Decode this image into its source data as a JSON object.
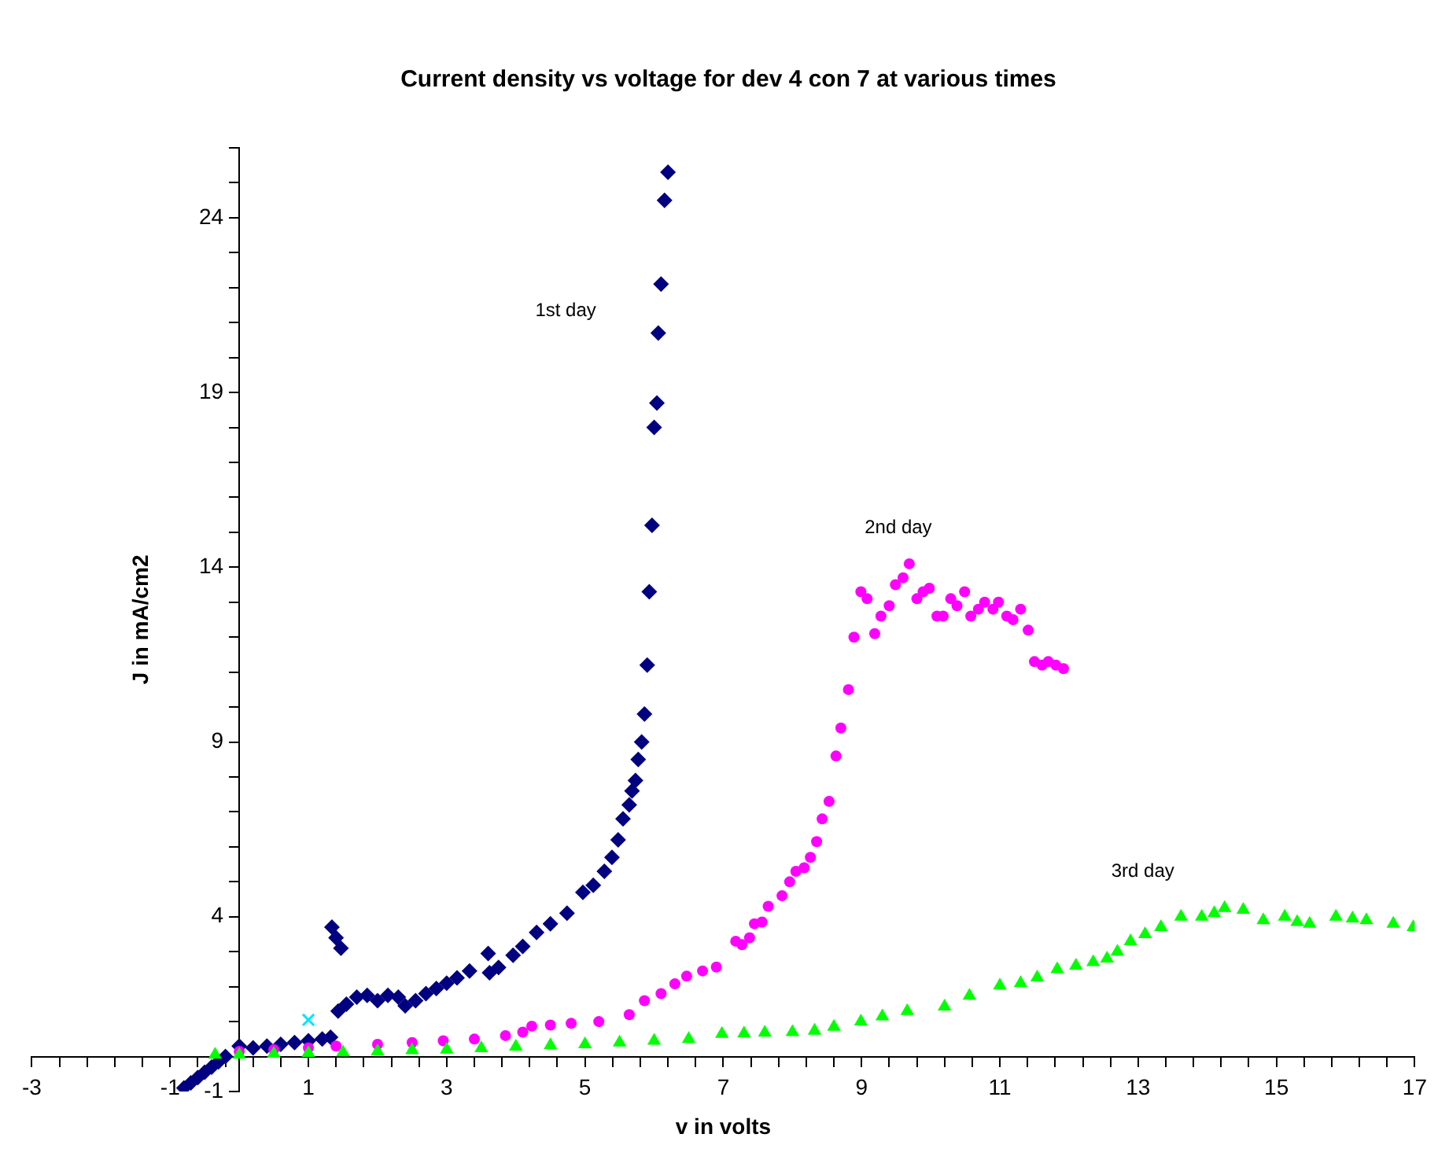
{
  "chart_data": {
    "type": "scatter",
    "title": "Current density vs voltage for dev 4 con 7 at various times",
    "xlabel": "v in volts",
    "ylabel": "J in mA/cm2",
    "xlim": [
      -3,
      17
    ],
    "ylim": [
      -1,
      26
    ],
    "xticks": [
      -3,
      {
        "value": -2.6,
        "label": null
      },
      {
        "value": -2.2,
        "label": null
      },
      {
        "value": -1.8,
        "label": null
      },
      {
        "value": -1.4,
        "label": null
      },
      -1,
      {
        "value": -0.6,
        "label": null
      },
      {
        "value": -0.2,
        "label": null
      },
      {
        "value": 0.2,
        "label": null
      },
      {
        "value": 0.6,
        "label": null
      },
      1,
      {
        "value": 1.4,
        "label": null
      },
      {
        "value": 1.8,
        "label": null
      },
      {
        "value": 2.2,
        "label": null
      },
      {
        "value": 2.6,
        "label": null
      },
      3,
      {
        "value": 3.4,
        "label": null
      },
      {
        "value": 3.8,
        "label": null
      },
      {
        "value": 4.2,
        "label": null
      },
      {
        "value": 4.6,
        "label": null
      },
      5,
      {
        "value": 5.4,
        "label": null
      },
      {
        "value": 5.8,
        "label": null
      },
      {
        "value": 6.2,
        "label": null
      },
      {
        "value": 6.6,
        "label": null
      },
      7,
      {
        "value": 7.4,
        "label": null
      },
      {
        "value": 7.8,
        "label": null
      },
      {
        "value": 8.2,
        "label": null
      },
      {
        "value": 8.6,
        "label": null
      },
      9,
      {
        "value": 9.4,
        "label": null
      },
      {
        "value": 9.8,
        "label": null
      },
      {
        "value": 10.2,
        "label": null
      },
      {
        "value": 10.6,
        "label": null
      },
      11,
      {
        "value": 11.4,
        "label": null
      },
      {
        "value": 11.8,
        "label": null
      },
      {
        "value": 12.2,
        "label": null
      },
      {
        "value": 12.6,
        "label": null
      },
      13,
      {
        "value": 13.4,
        "label": null
      },
      {
        "value": 13.8,
        "label": null
      },
      {
        "value": 14.2,
        "label": null
      },
      {
        "value": 14.6,
        "label": null
      },
      15,
      {
        "value": 15.4,
        "label": null
      },
      {
        "value": 15.8,
        "label": null
      },
      {
        "value": 16.2,
        "label": null
      },
      {
        "value": 16.6,
        "label": null
      },
      17
    ],
    "yticks": [
      -1,
      {
        "value": 0,
        "label": null
      },
      {
        "value": 1,
        "label": null
      },
      {
        "value": 2,
        "label": null
      },
      {
        "value": 3,
        "label": null
      },
      4,
      {
        "value": 5,
        "label": null
      },
      {
        "value": 6,
        "label": null
      },
      {
        "value": 7,
        "label": null
      },
      {
        "value": 8,
        "label": null
      },
      9,
      {
        "value": 10,
        "label": null
      },
      {
        "value": 11,
        "label": null
      },
      {
        "value": 12,
        "label": null
      },
      {
        "value": 13,
        "label": null
      },
      14,
      {
        "value": 15,
        "label": null
      },
      {
        "value": 16,
        "label": null
      },
      {
        "value": 17,
        "label": null
      },
      {
        "value": 18,
        "label": null
      },
      19,
      {
        "value": 20,
        "label": null
      },
      {
        "value": 21,
        "label": null
      },
      {
        "value": 22,
        "label": null
      },
      {
        "value": 23,
        "label": null
      },
      24,
      {
        "value": 25,
        "label": null
      },
      {
        "value": 26,
        "label": null
      }
    ],
    "series": [
      {
        "type": "scatter",
        "name": "1st day",
        "marker": "diamond",
        "color": "#000080",
        "x": [
          -0.8,
          -0.7,
          -0.6,
          -0.5,
          -0.4,
          -0.3,
          -0.2,
          0.0,
          0.2,
          0.4,
          0.6,
          0.8,
          1.0,
          1.2,
          1.32,
          1.34,
          1.4,
          1.47,
          1.43,
          1.55,
          1.7,
          1.85,
          2.0,
          2.15,
          2.3,
          2.4,
          2.55,
          2.7,
          2.85,
          3.0,
          3.15,
          3.33,
          3.6,
          3.62,
          3.75,
          3.96,
          4.1,
          4.3,
          4.5,
          4.74,
          4.97,
          5.12,
          5.28,
          5.39,
          5.48,
          5.55,
          5.64,
          5.68,
          5.73,
          5.77,
          5.82,
          5.86,
          5.9,
          5.93,
          5.97,
          6.0,
          6.04,
          6.06,
          6.1,
          6.15,
          6.2
        ],
        "values": [
          -0.9,
          -0.75,
          -0.6,
          -0.45,
          -0.3,
          -0.15,
          0.0,
          0.3,
          0.25,
          0.3,
          0.35,
          0.4,
          0.45,
          0.5,
          0.55,
          3.7,
          3.4,
          3.1,
          1.3,
          1.5,
          1.7,
          1.75,
          1.6,
          1.75,
          1.7,
          1.45,
          1.6,
          1.8,
          1.95,
          2.1,
          2.25,
          2.45,
          2.95,
          2.4,
          2.55,
          2.9,
          3.15,
          3.55,
          3.8,
          4.1,
          4.7,
          4.9,
          5.3,
          5.7,
          6.2,
          6.8,
          7.2,
          7.6,
          7.9,
          8.5,
          9.0,
          9.8,
          11.2,
          13.3,
          15.2,
          18.0,
          18.7,
          20.7,
          22.1,
          24.5,
          25.3
        ]
      },
      {
        "type": "scatter",
        "name": "2nd day",
        "marker": "circle",
        "color": "#ff00ff",
        "x": [
          0.0,
          0.5,
          1.0,
          1.4,
          2.0,
          2.5,
          2.95,
          3.4,
          3.85,
          4.1,
          4.23,
          4.5,
          4.8,
          5.2,
          5.64,
          5.86,
          6.1,
          6.3,
          6.47,
          6.7,
          6.9,
          7.18,
          7.27,
          7.38,
          7.45,
          7.56,
          7.65,
          7.85,
          7.96,
          8.05,
          8.17,
          8.26,
          8.35,
          8.43,
          8.53,
          8.63,
          8.7,
          8.81,
          8.89,
          8.99,
          9.08,
          9.19,
          9.28,
          9.4,
          9.49,
          9.6,
          9.69,
          9.8,
          9.89,
          9.98,
          10.09,
          10.18,
          10.29,
          10.38,
          10.49,
          10.58,
          10.69,
          10.78,
          10.9,
          10.98,
          11.1,
          11.19,
          11.3,
          11.41,
          11.5,
          11.61,
          11.7,
          11.81,
          11.92
        ],
        "values": [
          0.15,
          0.2,
          0.25,
          0.3,
          0.35,
          0.4,
          0.45,
          0.5,
          0.6,
          0.7,
          0.87,
          0.9,
          0.95,
          1.0,
          1.2,
          1.6,
          1.8,
          2.08,
          2.3,
          2.45,
          2.56,
          3.3,
          3.2,
          3.4,
          3.8,
          3.85,
          4.3,
          4.6,
          5.0,
          5.3,
          5.4,
          5.7,
          6.15,
          6.8,
          7.3,
          8.6,
          9.4,
          10.5,
          12.0,
          13.3,
          13.1,
          12.1,
          12.6,
          12.9,
          13.5,
          13.7,
          14.1,
          13.1,
          13.3,
          13.4,
          12.6,
          12.6,
          13.1,
          12.9,
          13.3,
          12.6,
          12.8,
          13.0,
          12.8,
          13.0,
          12.6,
          12.5,
          12.8,
          12.2,
          11.3,
          11.2,
          11.3,
          11.2,
          11.1
        ]
      },
      {
        "type": "scatter",
        "name": "3rd day",
        "marker": "triangle",
        "color": "#00ff00",
        "x": [
          -0.35,
          0.0,
          0.5,
          1.0,
          1.5,
          2.0,
          2.5,
          3.0,
          3.5,
          4.0,
          4.5,
          5.0,
          5.5,
          6.0,
          6.5,
          6.98,
          7.3,
          7.6,
          8.0,
          8.32,
          8.6,
          8.99,
          9.3,
          9.66,
          10.2,
          10.56,
          11.0,
          11.3,
          11.54,
          11.83,
          12.1,
          12.35,
          12.55,
          12.7,
          12.89,
          13.1,
          13.33,
          13.62,
          13.92,
          14.1,
          14.25,
          14.52,
          14.81,
          15.12,
          15.3,
          15.48,
          15.86,
          16.1,
          16.3,
          16.69,
          16.98
        ],
        "values": [
          0.05,
          0.05,
          0.08,
          0.1,
          0.12,
          0.15,
          0.18,
          0.2,
          0.24,
          0.28,
          0.32,
          0.35,
          0.4,
          0.45,
          0.5,
          0.65,
          0.66,
          0.68,
          0.7,
          0.74,
          0.85,
          1.0,
          1.15,
          1.3,
          1.43,
          1.74,
          2.03,
          2.1,
          2.26,
          2.5,
          2.6,
          2.7,
          2.8,
          3.0,
          3.3,
          3.5,
          3.7,
          4.0,
          4.0,
          4.1,
          4.25,
          4.2,
          3.9,
          4.0,
          3.85,
          3.8,
          4.0,
          3.95,
          3.9,
          3.8,
          3.7
        ]
      },
      {
        "type": "scatter",
        "marker": "cross",
        "color": "#00e5ff",
        "x": [
          1.0
        ],
        "values": [
          1.05
        ]
      }
    ]
  }
}
